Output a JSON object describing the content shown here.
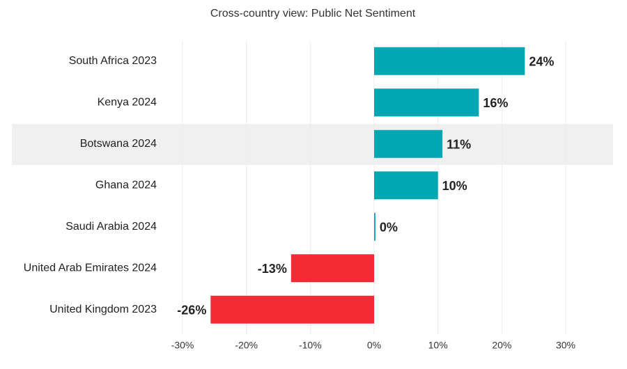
{
  "chart_data": {
    "type": "bar",
    "orientation": "horizontal",
    "title": "Cross-country view: Public Net Sentiment",
    "categories": [
      "South Africa 2023",
      "Kenya 2024",
      "Botswana 2024",
      "Ghana 2024",
      "Saudi Arabia 2024",
      "United Arab Emirates 2024",
      "United Kingdom 2023"
    ],
    "values": [
      23.6,
      16.4,
      10.7,
      10.0,
      0.2,
      -13.0,
      -25.6
    ],
    "value_labels": [
      "24%",
      "16%",
      "11%",
      "10%",
      "0%",
      "-13%",
      "-26%"
    ],
    "colors": [
      "#00a6b0",
      "#00a6b0",
      "#00a6b0",
      "#00a6b0",
      "#00a6b0",
      "#f42a35",
      "#f42a35"
    ],
    "xlim": [
      -30,
      30
    ],
    "xticks": [
      {
        "value": -30,
        "label": "-30%"
      },
      {
        "value": -20,
        "label": "-20%"
      },
      {
        "value": -10,
        "label": "-10%"
      },
      {
        "value": 0,
        "label": "0%"
      },
      {
        "value": 10,
        "label": "10%"
      },
      {
        "value": 20,
        "label": "20%"
      },
      {
        "value": 30,
        "label": "30%"
      }
    ],
    "grid": true
  }
}
